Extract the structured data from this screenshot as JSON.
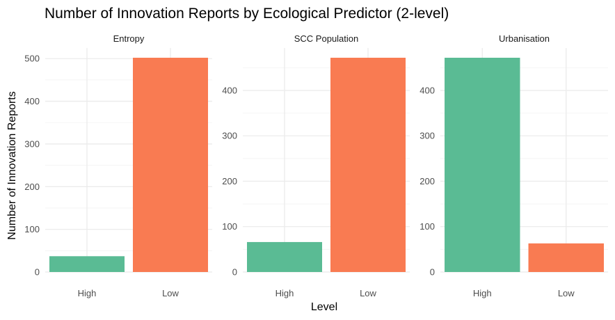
{
  "chart_data": {
    "type": "bar",
    "title": "Number of Innovation Reports by Ecological Predictor (2-level)",
    "xlabel": "Level",
    "ylabel": "Number of Innovation Reports",
    "categories": [
      "High",
      "Low"
    ],
    "colors": {
      "High": "#5ABB94",
      "Low": "#F97B52"
    },
    "legend": "none",
    "grid": true,
    "facets": [
      {
        "name": "Entropy",
        "values": [
          37,
          502
        ],
        "ylim": [
          0,
          502
        ],
        "yticks": [
          0,
          100,
          200,
          300,
          400,
          500
        ]
      },
      {
        "name": "SCC Population",
        "values": [
          66,
          472
        ],
        "ylim": [
          0,
          472
        ],
        "yticks": [
          0,
          100,
          200,
          300,
          400
        ]
      },
      {
        "name": "Urbanisation",
        "values": [
          472,
          63
        ],
        "ylim": [
          0,
          472
        ],
        "yticks": [
          0,
          100,
          200,
          300,
          400
        ]
      }
    ]
  }
}
